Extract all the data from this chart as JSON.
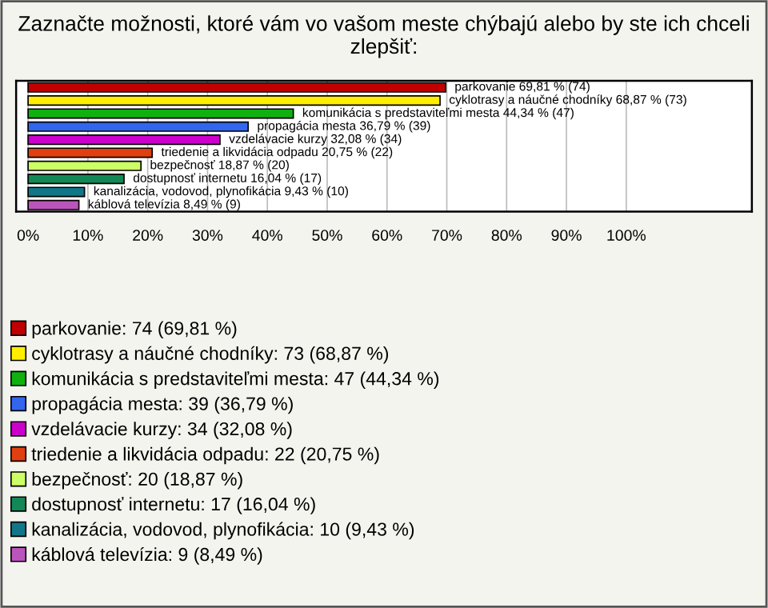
{
  "chart_data": {
    "type": "bar",
    "orientation": "horizontal",
    "title": "Zaznačte možnosti, ktoré vám vo vašom meste chýbajú alebo by ste ich chceli zlepšiť:",
    "categories": [
      null,
      null,
      null,
      null,
      null,
      null,
      null,
      null,
      null,
      null
    ],
    "xlim": [
      -2,
      121
    ],
    "xticks": [
      {
        "value": 0,
        "label": "0%"
      },
      {
        "value": 10,
        "label": "10%"
      },
      {
        "value": 20,
        "label": "20%"
      },
      {
        "value": 30,
        "label": "30%"
      },
      {
        "value": 40,
        "label": "40%"
      },
      {
        "value": 50,
        "label": "50%"
      },
      {
        "value": 60,
        "label": "60%"
      },
      {
        "value": 70,
        "label": "70%"
      },
      {
        "value": 80,
        "label": "80%"
      },
      {
        "value": 90,
        "label": "90%"
      },
      {
        "value": 100,
        "label": "100%"
      }
    ],
    "grid": "x",
    "legend": "bottom",
    "series": [
      {
        "name": "parkovanie: 74 (69,81 %)",
        "color": "#c00000",
        "values": [
          69.81,
          null,
          null,
          null,
          null,
          null,
          null,
          null,
          null,
          null
        ],
        "value_labels": [
          "parkovanie 69,81 % (74)",
          null,
          null,
          null,
          null,
          null,
          null,
          null,
          null,
          null
        ]
      },
      {
        "name": "cyklotrasy a náučné chodníky: 73 (68,87 %)",
        "color": "#ffee00",
        "values": [
          null,
          68.87,
          null,
          null,
          null,
          null,
          null,
          null,
          null,
          null
        ],
        "value_labels": [
          null,
          "cyklotrasy a náučné chodníky 68,87 % (73)",
          null,
          null,
          null,
          null,
          null,
          null,
          null,
          null
        ]
      },
      {
        "name": "komunikácia s predstaviteľmi mesta: 47 (44,34 %)",
        "color": "#10b010",
        "values": [
          null,
          null,
          44.34,
          null,
          null,
          null,
          null,
          null,
          null,
          null
        ],
        "value_labels": [
          null,
          null,
          "komunikácia s predstaviteľmi mesta 44,34 % (47)",
          null,
          null,
          null,
          null,
          null,
          null,
          null
        ]
      },
      {
        "name": "propagácia mesta: 39 (36,79 %)",
        "color": "#3366ee",
        "values": [
          null,
          null,
          null,
          36.79,
          null,
          null,
          null,
          null,
          null,
          null
        ],
        "value_labels": [
          null,
          null,
          null,
          "propagácia mesta 36,79 % (39)",
          null,
          null,
          null,
          null,
          null,
          null
        ]
      },
      {
        "name": "vzdelávacie kurzy: 34 (32,08 %)",
        "color": "#cc00cc",
        "values": [
          null,
          null,
          null,
          null,
          32.08,
          null,
          null,
          null,
          null,
          null
        ],
        "value_labels": [
          null,
          null,
          null,
          null,
          "vzdelávacie kurzy 32,08 % (34)",
          null,
          null,
          null,
          null,
          null
        ]
      },
      {
        "name": "triedenie a likvidácia odpadu: 22 (20,75 %)",
        "color": "#e04010",
        "values": [
          null,
          null,
          null,
          null,
          null,
          20.75,
          null,
          null,
          null,
          null
        ],
        "value_labels": [
          null,
          null,
          null,
          null,
          null,
          "triedenie a likvidácia odpadu 20,75 % (22)",
          null,
          null,
          null,
          null
        ]
      },
      {
        "name": "bezpečnosť: 20 (18,87 %)",
        "color": "#ccff66",
        "values": [
          null,
          null,
          null,
          null,
          null,
          null,
          18.87,
          null,
          null,
          null
        ],
        "value_labels": [
          null,
          null,
          null,
          null,
          null,
          null,
          "bezpečnosť 18,87 % (20)",
          null,
          null,
          null
        ]
      },
      {
        "name": "dostupnosť internetu: 17 (16,04 %)",
        "color": "#118855",
        "values": [
          null,
          null,
          null,
          null,
          null,
          null,
          null,
          16.04,
          null,
          null
        ],
        "value_labels": [
          null,
          null,
          null,
          null,
          null,
          null,
          null,
          "dostupnosť internetu 16,04 % (17)",
          null,
          null
        ]
      },
      {
        "name": "kanalizácia, vodovod, plynofikácia: 10 (9,43 %)",
        "color": "#117788",
        "values": [
          null,
          null,
          null,
          null,
          null,
          null,
          null,
          null,
          9.43,
          null
        ],
        "value_labels": [
          null,
          null,
          null,
          null,
          null,
          null,
          null,
          null,
          "kanalizácia, vodovod, plynofikácia 9,43 % (10)",
          null
        ]
      },
      {
        "name": "káblová televízia: 9 (8,49 %)",
        "color": "#bb55bb",
        "values": [
          null,
          null,
          null,
          null,
          null,
          null,
          null,
          null,
          null,
          8.49
        ],
        "value_labels": [
          null,
          null,
          null,
          null,
          null,
          null,
          null,
          null,
          null,
          "káblová televízia 8,49 % (9)"
        ]
      }
    ]
  }
}
